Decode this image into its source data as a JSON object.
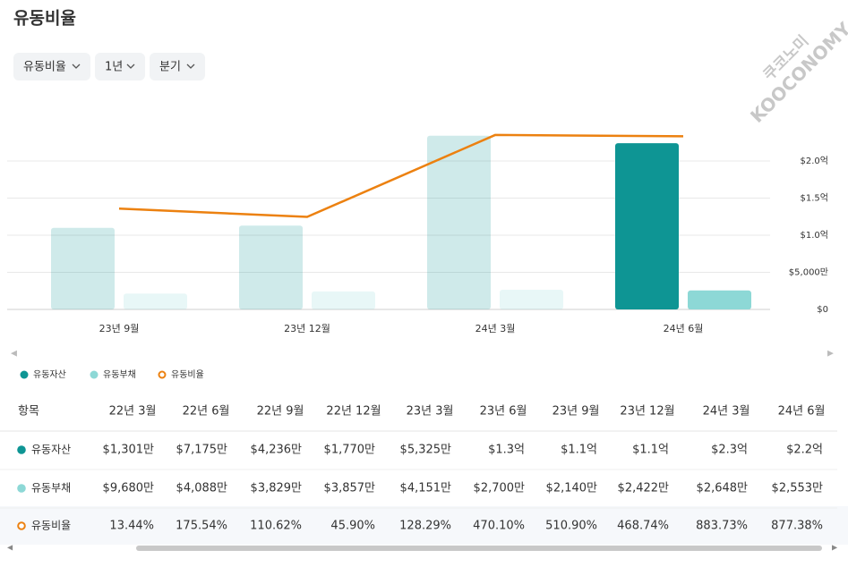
{
  "header": {
    "title": "유동비율",
    "filters": [
      "유동비율",
      "1년",
      "분기"
    ],
    "watermark": [
      "쿠코노미",
      "KOOCONOMY"
    ]
  },
  "chart_data": {
    "type": "bar",
    "categories": [
      "23년 9월",
      "23년 12월",
      "24년 3월",
      "24년 6월"
    ],
    "series": [
      {
        "name": "유동자산",
        "color": "#0e9594",
        "values": [
          11000,
          11300,
          23400,
          22400
        ]
      },
      {
        "name": "유동부채",
        "color": "#8dd8d6",
        "values": [
          2140,
          2422,
          2648,
          2553
        ]
      },
      {
        "name": "유동비율",
        "color": "#ec8110",
        "type": "line",
        "axis": "y2",
        "values": [
          510.9,
          468.74,
          883.73,
          877.38
        ]
      }
    ],
    "ylim": [
      0,
      25000
    ],
    "yticks": [
      {
        "value": 0,
        "label": "$0"
      },
      {
        "value": 5000,
        "label": "$5,000만"
      },
      {
        "value": 10000,
        "label": "$1.0억"
      },
      {
        "value": 15000,
        "label": "$1.5억"
      },
      {
        "value": 20000,
        "label": "$2.0억"
      }
    ],
    "y2lim": [
      0,
      940
    ],
    "grid": true,
    "legend": "bottom-left"
  },
  "table": {
    "header": [
      "항목",
      "22년 3월",
      "22년 6월",
      "22년 9월",
      "22년 12월",
      "23년 3월",
      "23년 6월",
      "23년 9월",
      "23년 12월",
      "24년 3월",
      "24년 6월"
    ],
    "rows": [
      [
        "유동자산",
        "$1,301만",
        "$7,175만",
        "$4,236만",
        "$1,770만",
        "$5,325만",
        "$1.3억",
        "$1.1억",
        "$1.1억",
        "$2.3억",
        "$2.2억"
      ],
      [
        "유동부채",
        "$9,680만",
        "$4,088만",
        "$3,829만",
        "$3,857만",
        "$4,151만",
        "$2,700만",
        "$2,140만",
        "$2,422만",
        "$2,648만",
        "$2,553만"
      ],
      [
        "유동비율",
        "13.44%",
        "175.54%",
        "110.62%",
        "45.90%",
        "128.29%",
        "470.10%",
        "510.90%",
        "468.74%",
        "883.73%",
        "877.38%"
      ]
    ]
  }
}
